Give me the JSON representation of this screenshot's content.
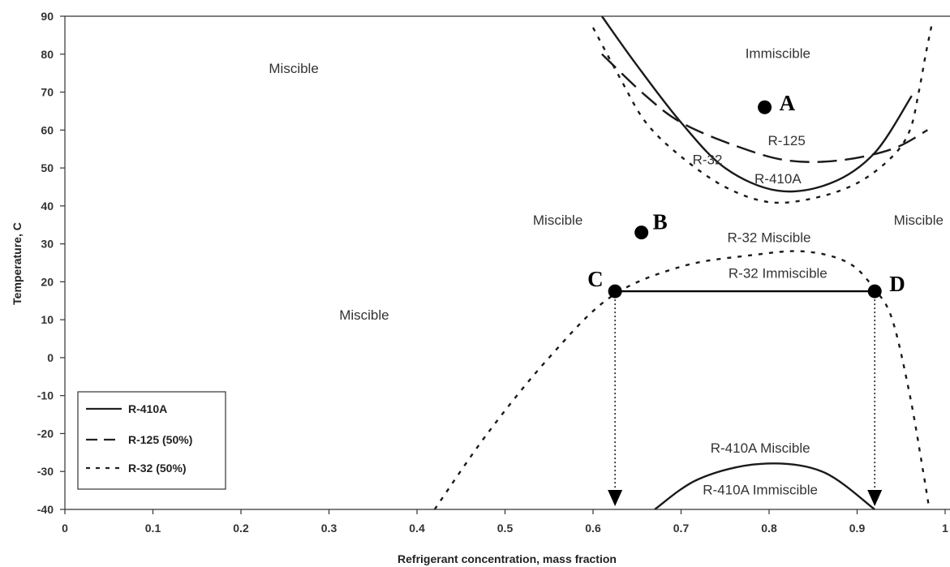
{
  "chart_data": {
    "type": "line",
    "title": "",
    "xlabel": "Refrigerant concentration, mass fraction",
    "ylabel": "Temperature, C",
    "xlim": [
      0,
      1
    ],
    "ylim": [
      -40,
      90
    ],
    "xticks": [
      "0",
      "0.1",
      "0.2",
      "0.3",
      "0.4",
      "0.5",
      "0.6",
      "0.7",
      "0.8",
      "0.9",
      "1"
    ],
    "yticks": [
      "90",
      "80",
      "70",
      "60",
      "50",
      "40",
      "30",
      "20",
      "10",
      "0",
      "-10",
      "-20",
      "-30",
      "-40"
    ],
    "grid": false,
    "legend_position": "bottom-left",
    "legend": [
      "R-410A",
      "R-125 (50%)",
      "R-32 (50%)"
    ],
    "series": [
      {
        "name": "R-410A",
        "style": "solid",
        "segments": [
          [
            [
              0.61,
              90
            ],
            [
              0.65,
              77
            ],
            [
              0.7,
              62
            ],
            [
              0.75,
              50
            ],
            [
              0.81,
              44
            ],
            [
              0.87,
              46
            ],
            [
              0.92,
              54
            ],
            [
              0.962,
              69
            ]
          ],
          [
            [
              0.67,
              -40
            ],
            [
              0.72,
              -32
            ],
            [
              0.79,
              -28
            ],
            [
              0.86,
              -30
            ],
            [
              0.92,
              -40
            ]
          ]
        ]
      },
      {
        "name": "R-125 (50%)",
        "style": "dashed",
        "segments": [
          [
            [
              0.61,
              80
            ],
            [
              0.66,
              69
            ],
            [
              0.7,
              62
            ],
            [
              0.76,
              56
            ],
            [
              0.82,
              52
            ],
            [
              0.88,
              52
            ],
            [
              0.94,
              55
            ],
            [
              0.98,
              60
            ]
          ]
        ]
      },
      {
        "name": "R-32 (50%)",
        "style": "dotted",
        "segments": [
          [
            [
              0.6,
              87
            ],
            [
              0.63,
              74
            ],
            [
              0.66,
              62
            ],
            [
              0.7,
              53
            ],
            [
              0.75,
              45
            ],
            [
              0.8,
              41
            ],
            [
              0.85,
              42
            ],
            [
              0.9,
              46
            ],
            [
              0.94,
              53
            ],
            [
              0.96,
              60
            ],
            [
              0.97,
              70
            ],
            [
              0.978,
              80
            ],
            [
              0.985,
              88
            ]
          ],
          [
            [
              0.42,
              -40
            ],
            [
              0.48,
              -20
            ],
            [
              0.55,
              0
            ],
            [
              0.62,
              16
            ],
            [
              0.7,
              24
            ],
            [
              0.78,
              27
            ],
            [
              0.84,
              28
            ],
            [
              0.89,
              25
            ],
            [
              0.92,
              18
            ],
            [
              0.94,
              10
            ],
            [
              0.96,
              -10
            ],
            [
              0.975,
              -30
            ],
            [
              0.982,
              -40
            ]
          ]
        ]
      }
    ],
    "tie_line": [
      [
        0.625,
        17.5
      ],
      [
        0.92,
        17.5
      ]
    ],
    "drop_lines": [
      [
        [
          0.625,
          17.5
        ],
        [
          0.625,
          -40
        ]
      ],
      [
        [
          0.92,
          17.5
        ],
        [
          0.92,
          -40
        ]
      ]
    ],
    "points": [
      {
        "label": "A",
        "x": 0.795,
        "y": 66
      },
      {
        "label": "B",
        "x": 0.655,
        "y": 33
      },
      {
        "label": "C",
        "x": 0.625,
        "y": 17.5
      },
      {
        "label": "D",
        "x": 0.92,
        "y": 17.5
      }
    ],
    "annotations": [
      {
        "text": "Miscible",
        "x": 0.26,
        "y": 75
      },
      {
        "text": "Miscible",
        "x": 0.56,
        "y": 35
      },
      {
        "text": "Miscible",
        "x": 1.0,
        "y": 35
      },
      {
        "text": "Miscible",
        "x": 0.34,
        "y": 10
      },
      {
        "text": "Immiscible",
        "x": 0.81,
        "y": 79
      },
      {
        "text": "R-125",
        "x": 0.82,
        "y": 56
      },
      {
        "text": "R-32",
        "x": 0.73,
        "y": 51
      },
      {
        "text": "R-410A",
        "x": 0.81,
        "y": 46
      },
      {
        "text": "R-32 Miscible",
        "x": 0.8,
        "y": 30.5
      },
      {
        "text": "R-32 Immiscible",
        "x": 0.81,
        "y": 21
      },
      {
        "text": "R-410A Miscible",
        "x": 0.79,
        "y": -25
      },
      {
        "text": "R-410A Immiscible",
        "x": 0.79,
        "y": -36
      }
    ]
  }
}
